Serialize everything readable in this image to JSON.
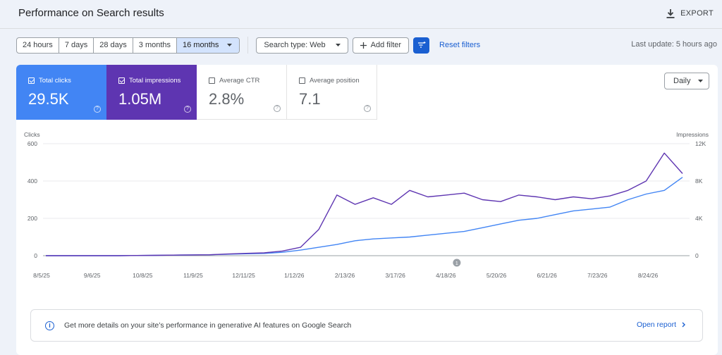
{
  "header": {
    "title": "Performance on Search results",
    "export_label": "EXPORT"
  },
  "filters": {
    "ranges": [
      "24 hours",
      "7 days",
      "28 days",
      "3 months",
      "16 months"
    ],
    "active_range": "16 months",
    "search_type": "Search type: Web",
    "add_filter": "Add filter",
    "reset": "Reset filters",
    "last_update": "Last update: 5 hours ago"
  },
  "metrics": [
    {
      "label": "Total clicks",
      "value": "29.5K",
      "checked": true
    },
    {
      "label": "Total impressions",
      "value": "1.05M",
      "checked": true
    },
    {
      "label": "Average CTR",
      "value": "2.8%",
      "checked": false
    },
    {
      "label": "Average position",
      "value": "7.1",
      "checked": false
    }
  ],
  "granularity": "Daily",
  "colors": {
    "clicks": "#4285f4",
    "impressions": "#5e35b1",
    "accent": "#1a5fd1"
  },
  "chart_data": {
    "type": "line",
    "left_axis_label": "Clicks",
    "right_axis_label": "Impressions",
    "left_ticks": [
      "0",
      "200",
      "400",
      "600"
    ],
    "right_ticks": [
      "0",
      "4K",
      "8K",
      "12K"
    ],
    "ylim_left": [
      0,
      600
    ],
    "ylim_right": [
      0,
      12000
    ],
    "x_tick_labels": [
      "8/5/25",
      "9/6/25",
      "10/8/25",
      "11/9/25",
      "12/11/25",
      "1/12/26",
      "2/13/26",
      "3/17/26",
      "4/18/26",
      "5/20/26",
      "6/21/26",
      "7/23/26",
      "8/24/26"
    ],
    "annotation": "1",
    "grid": true,
    "series": [
      {
        "key": "clicks",
        "axis": "left",
        "values": [
          0,
          0,
          0,
          0,
          0,
          1,
          2,
          3,
          4,
          5,
          8,
          10,
          12,
          18,
          30,
          45,
          60,
          80,
          90,
          95,
          100,
          110,
          120,
          130,
          150,
          170,
          190,
          200,
          220,
          240,
          250,
          260,
          300,
          330,
          350,
          420
        ]
      },
      {
        "key": "impressions",
        "axis": "right",
        "values": [
          0,
          0,
          0,
          0,
          0,
          20,
          40,
          60,
          80,
          100,
          180,
          250,
          300,
          500,
          900,
          2800,
          6500,
          5500,
          6200,
          5500,
          7000,
          6300,
          6500,
          6700,
          6000,
          5800,
          6500,
          6300,
          6000,
          6300,
          6100,
          6400,
          7000,
          8000,
          11000,
          8800
        ]
      }
    ]
  },
  "banner": {
    "text": "Get more details on your site’s performance in generative AI features on Google Search",
    "link": "Open report"
  }
}
